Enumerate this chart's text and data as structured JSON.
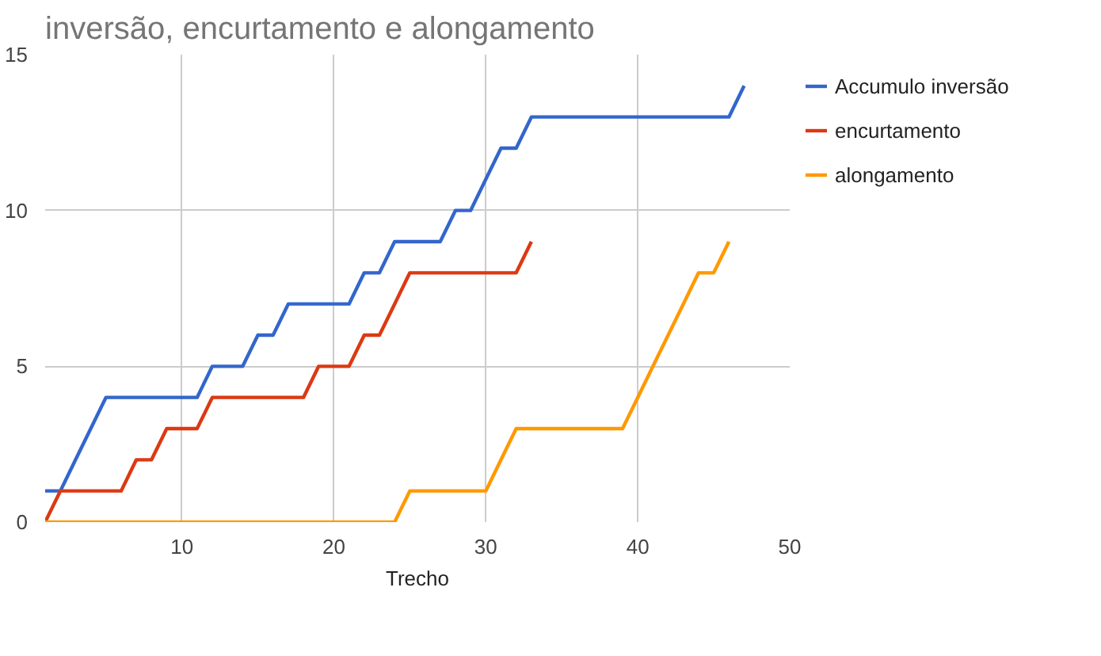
{
  "chart_data": {
    "type": "line",
    "title": "inversão, encurtamento e alongamento",
    "xlabel": "Trecho",
    "x": [
      1,
      2,
      3,
      4,
      5,
      6,
      7,
      8,
      9,
      10,
      11,
      12,
      13,
      14,
      15,
      16,
      17,
      18,
      19,
      20,
      21,
      22,
      23,
      24,
      25,
      26,
      27,
      28,
      29,
      30,
      31,
      32,
      33,
      34,
      35,
      36,
      37,
      38,
      39,
      40,
      41,
      42,
      43,
      44,
      45,
      46,
      47
    ],
    "series": [
      {
        "name": "Accumulo inversão",
        "color": "#3366cc",
        "values": [
          1,
          1,
          2,
          3,
          4,
          4,
          4,
          4,
          4,
          4,
          4,
          5,
          5,
          5,
          6,
          6,
          7,
          7,
          7,
          7,
          7,
          8,
          8,
          9,
          9,
          9,
          9,
          10,
          10,
          11,
          12,
          12,
          13,
          13,
          13,
          13,
          13,
          13,
          13,
          13,
          13,
          13,
          13,
          13,
          13,
          13,
          14
        ]
      },
      {
        "name": "encurtamento",
        "color": "#dc3912",
        "values": [
          0,
          1,
          1,
          1,
          1,
          1,
          2,
          2,
          3,
          3,
          3,
          4,
          4,
          4,
          4,
          4,
          4,
          4,
          5,
          5,
          5,
          6,
          6,
          7,
          8,
          8,
          8,
          8,
          8,
          8,
          8,
          8,
          9,
          null,
          null,
          null,
          null,
          null,
          null,
          null,
          null,
          null,
          null,
          null,
          null,
          null,
          null
        ]
      },
      {
        "name": "alongamento",
        "color": "#ff9900",
        "values": [
          0,
          0,
          0,
          0,
          0,
          0,
          0,
          0,
          0,
          0,
          0,
          0,
          0,
          0,
          0,
          0,
          0,
          0,
          0,
          0,
          0,
          0,
          0,
          0,
          1,
          1,
          1,
          1,
          1,
          1,
          2,
          3,
          3,
          3,
          3,
          3,
          3,
          3,
          3,
          4,
          5,
          6,
          7,
          8,
          8,
          9,
          null
        ]
      }
    ],
    "xlim": [
      1,
      50
    ],
    "xticks": [
      10,
      20,
      30,
      40,
      50
    ],
    "ylim": [
      0,
      15
    ],
    "yticks": [
      0,
      5,
      10,
      15
    ],
    "grid": true,
    "legend": "right"
  }
}
